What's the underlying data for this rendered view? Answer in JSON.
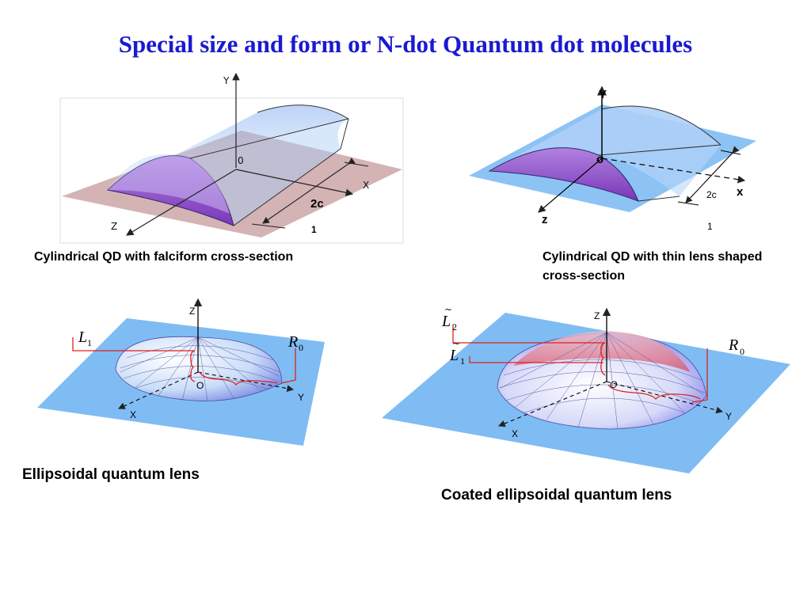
{
  "title": "Special size and form or N-dot Quantum dot molecules",
  "panels": {
    "falciform": {
      "caption": "Cylindrical QD with falciform cross-section",
      "axes": {
        "y": "Y",
        "x": "X",
        "z": "Z",
        "origin": "0"
      },
      "width_label": "2c",
      "index_label": "1"
    },
    "thin_lens": {
      "caption": "Cylindrical QD with thin lens shaped cross-section",
      "axes": {
        "y": "Y",
        "x": "x",
        "z": "z",
        "origin": "o"
      },
      "width_label": "2c",
      "index_label": "1"
    },
    "ellipsoidal": {
      "caption": "Ellipsoidal quantum lens",
      "axes": {
        "z": "Z",
        "x": "X",
        "y": "Y",
        "origin": "O"
      },
      "height_label": "L",
      "height_sub": "1",
      "radius_label": "R",
      "radius_sub": "0"
    },
    "coated": {
      "caption": "Coated ellipsoidal quantum lens",
      "axes": {
        "z": "Z",
        "x": "X",
        "y": "Y",
        "origin": "O"
      },
      "outer_height_label": "L",
      "outer_height_sub": "2",
      "inner_height_label": "L",
      "inner_height_sub": "1",
      "radius_label": "R",
      "radius_sub": "0"
    }
  },
  "colors": {
    "title": "#1a1ad0",
    "substrate_blue": "#7fbcf3",
    "substrate_pink": "#c9a0a3",
    "dot_violet": "#8a48c8",
    "annotation_red": "#e0201a"
  }
}
